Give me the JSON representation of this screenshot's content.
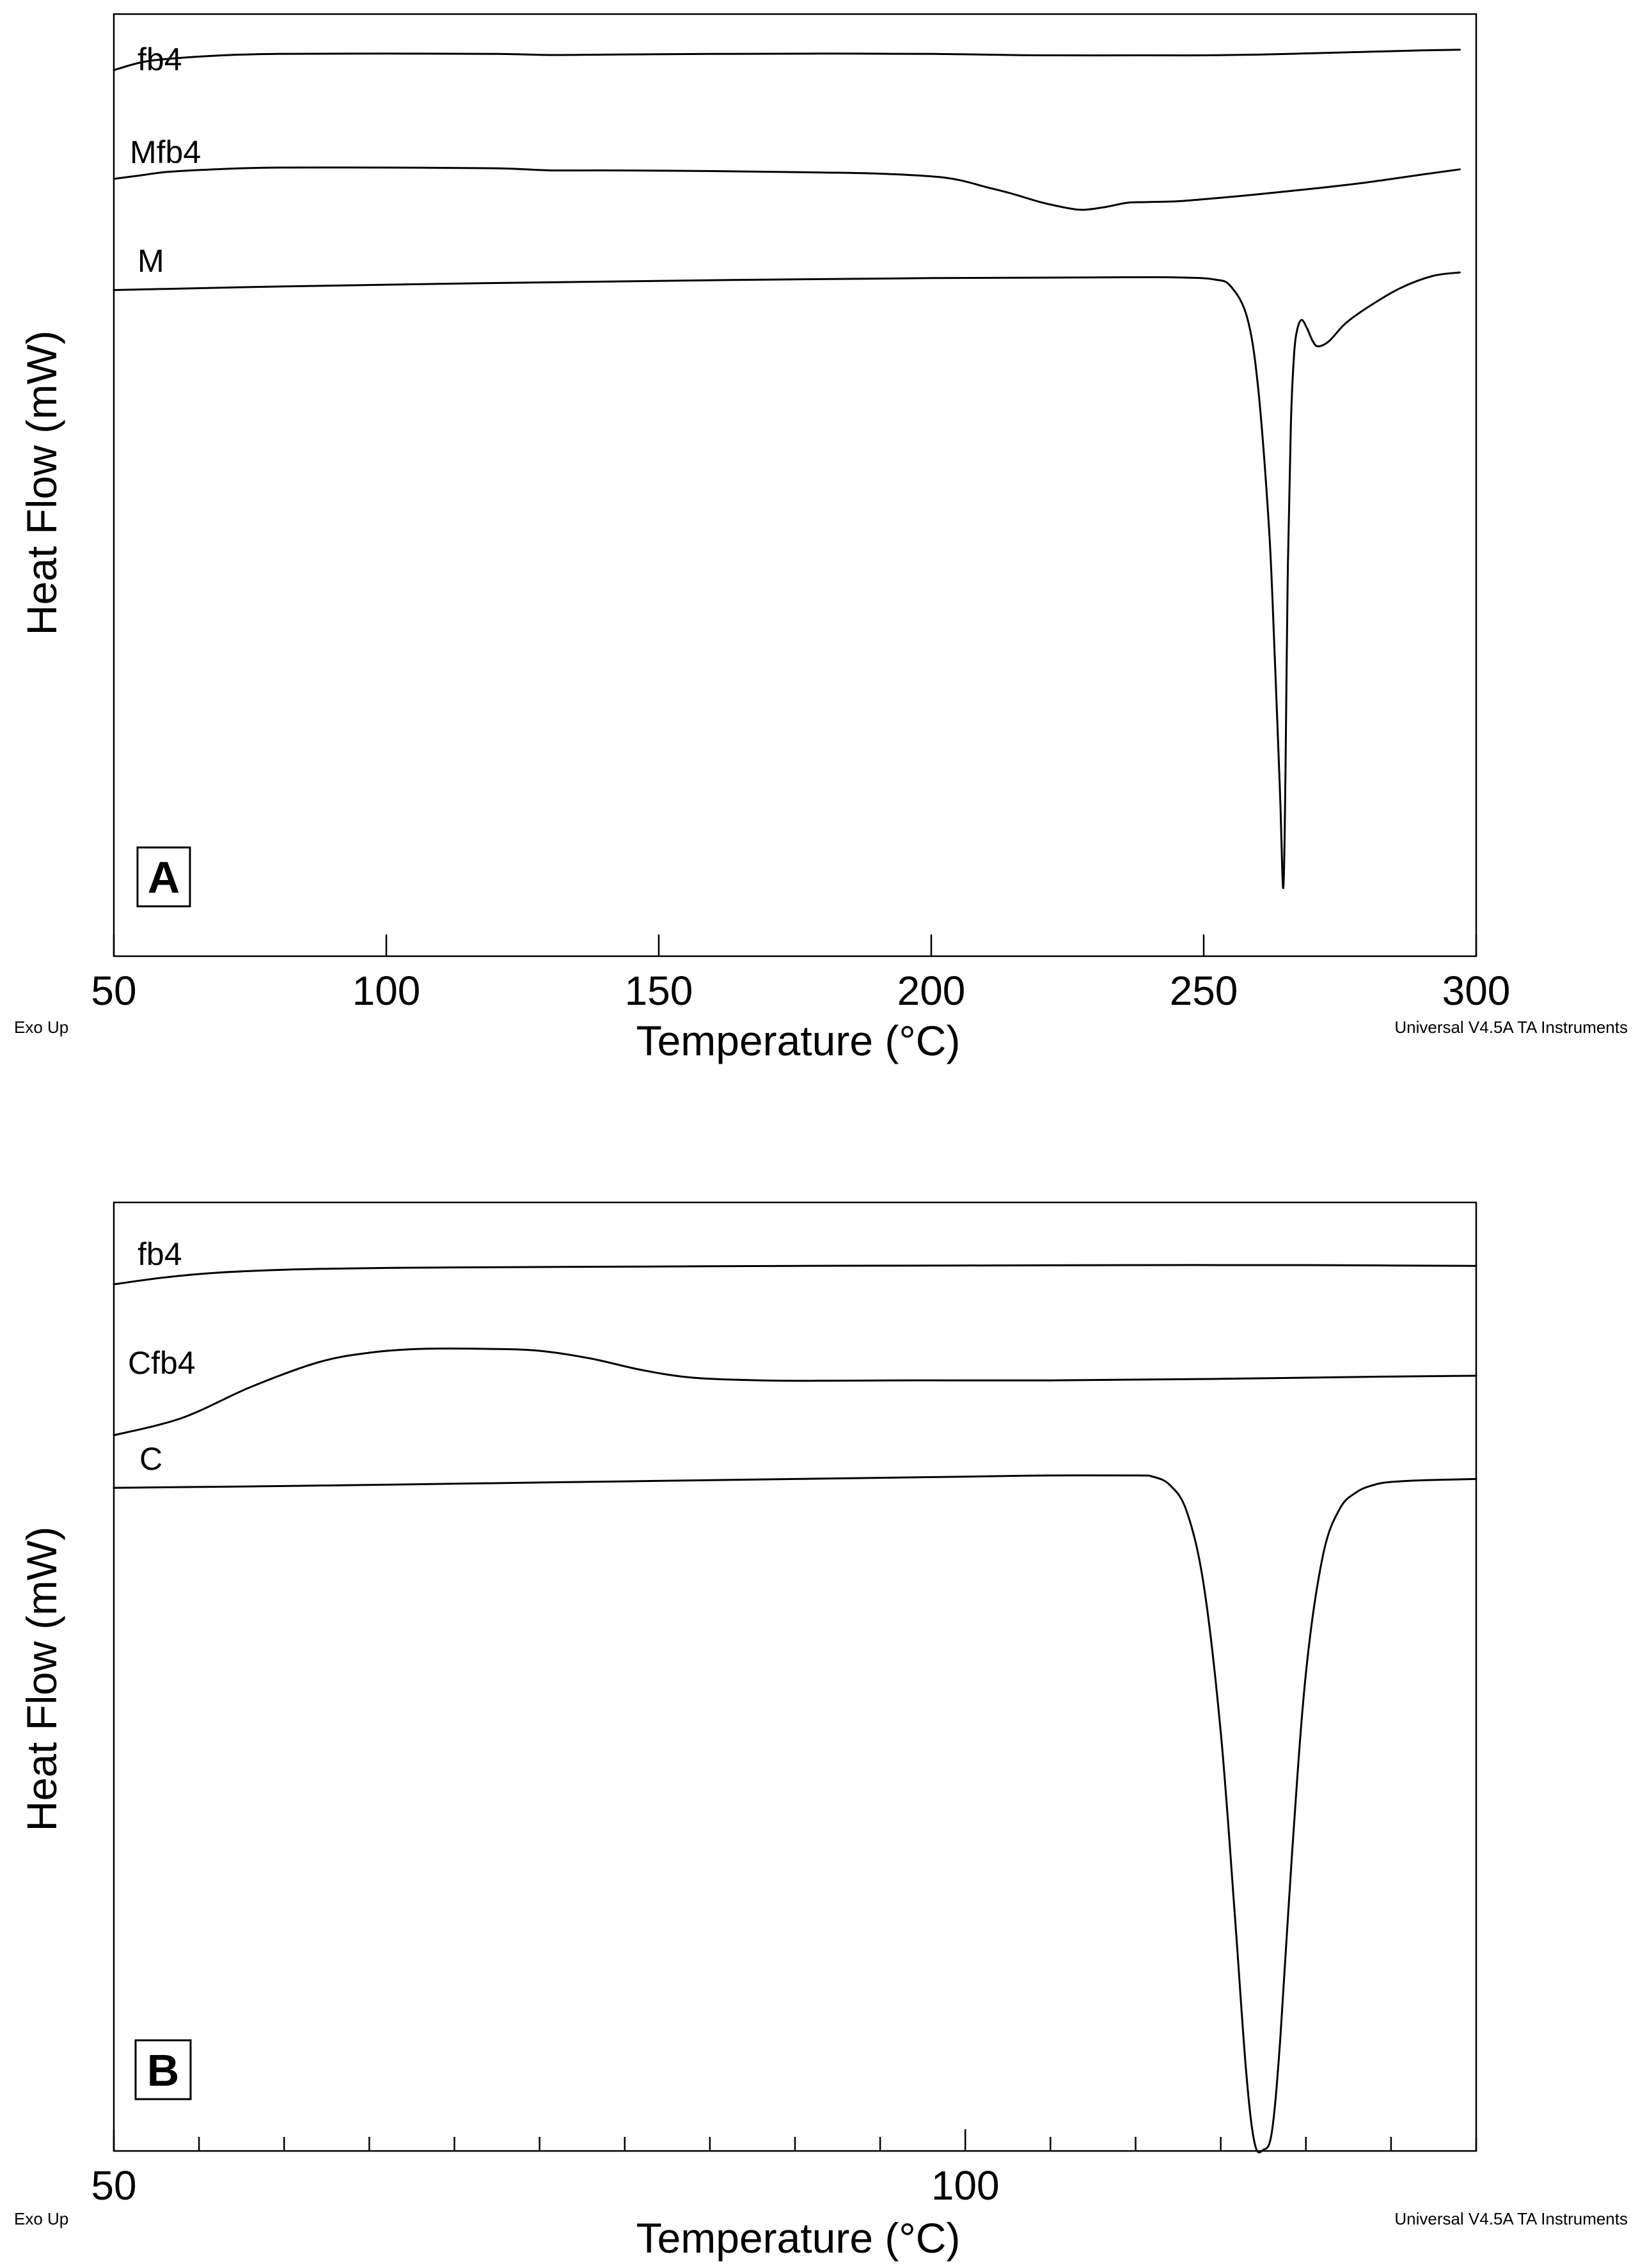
{
  "chart_data": [
    {
      "type": "line",
      "panel_label": "A",
      "xlabel": "Temperature (°C)",
      "ylabel": "Heat Flow (mW)",
      "xlim": [
        50,
        300
      ],
      "xticks": [
        50,
        100,
        150,
        200,
        250,
        300
      ],
      "footer_left": "Exo Up",
      "footer_right": "Universal V4.5A TA Instruments",
      "grid": false,
      "series": [
        {
          "name": "fb4",
          "x": [
            50,
            55,
            60,
            70,
            80,
            100,
            120,
            130,
            140,
            160,
            180,
            200,
            210,
            220,
            240,
            250,
            260,
            270,
            280,
            290,
            297
          ],
          "y": [
            0.28,
            0.5,
            0.6,
            0.7,
            0.74,
            0.75,
            0.74,
            0.71,
            0.72,
            0.74,
            0.75,
            0.74,
            0.72,
            0.7,
            0.7,
            0.7,
            0.72,
            0.76,
            0.8,
            0.84,
            0.86
          ]
        },
        {
          "name": "Mfb4",
          "x": [
            50,
            55,
            60,
            70,
            80,
            100,
            120,
            130,
            140,
            160,
            180,
            190,
            200,
            205,
            210,
            215,
            220,
            225,
            228,
            232,
            236,
            240,
            245,
            250,
            260,
            270,
            280,
            290,
            297
          ],
          "y": [
            0.28,
            0.38,
            0.48,
            0.56,
            0.6,
            0.6,
            0.58,
            0.52,
            0.52,
            0.5,
            0.46,
            0.43,
            0.35,
            0.25,
            0.05,
            -0.15,
            -0.38,
            -0.55,
            -0.6,
            -0.52,
            -0.4,
            -0.38,
            -0.36,
            -0.3,
            -0.16,
            0.0,
            0.18,
            0.4,
            0.55
          ]
        },
        {
          "name": "M",
          "x": [
            50,
            80,
            120,
            160,
            200,
            230,
            245,
            252,
            255,
            258,
            260,
            262,
            263,
            264,
            264.6,
            265,
            265.4,
            266,
            266.6,
            267.2,
            268,
            269,
            270,
            271,
            273,
            276,
            280,
            286,
            292,
            297
          ],
          "y": [
            0.3,
            0.4,
            0.5,
            0.58,
            0.64,
            0.66,
            0.66,
            0.6,
            0.4,
            -0.5,
            -2.5,
            -6.5,
            -10.0,
            -14.0,
            -16.7,
            -13.5,
            -8.0,
            -3.5,
            -1.5,
            -0.8,
            -0.55,
            -0.8,
            -1.15,
            -1.3,
            -1.15,
            -0.65,
            -0.2,
            0.35,
            0.7,
            0.8
          ]
        }
      ]
    },
    {
      "type": "line",
      "panel_label": "B",
      "xlabel": "Temperature (°C)",
      "ylabel": "Heat Flow (mW)",
      "xlim": [
        50,
        130
      ],
      "xticks": [
        50,
        100
      ],
      "minor_ticks": [
        50,
        55,
        60,
        65,
        70,
        75,
        80,
        85,
        90,
        95,
        100,
        105,
        110,
        115,
        120,
        125,
        130
      ],
      "footer_left": "Exo Up",
      "footer_right": "Universal V4.5A TA Instruments",
      "grid": false,
      "series": [
        {
          "name": "fb4",
          "x": [
            50,
            53,
            56,
            60,
            65,
            70,
            80,
            90,
            100,
            110,
            120,
            125,
            130
          ],
          "y": [
            0.2,
            0.38,
            0.5,
            0.58,
            0.62,
            0.64,
            0.66,
            0.68,
            0.69,
            0.7,
            0.7,
            0.69,
            0.68
          ]
        },
        {
          "name": "Cfb4",
          "x": [
            50,
            54,
            58,
            62,
            65,
            68,
            72,
            75,
            78,
            81,
            84,
            88,
            92,
            96,
            100,
            105,
            110,
            115,
            120,
            125,
            130
          ],
          "y": [
            -1.15,
            -0.7,
            0.1,
            0.75,
            1.0,
            1.1,
            1.1,
            1.05,
            0.85,
            0.55,
            0.35,
            0.28,
            0.27,
            0.28,
            0.28,
            0.28,
            0.3,
            0.32,
            0.35,
            0.38,
            0.4
          ]
        },
        {
          "name": "C",
          "x": [
            50,
            60,
            70,
            80,
            90,
            100,
            105,
            110,
            111,
            112,
            113,
            114,
            115,
            115.8,
            116.5,
            117,
            117.5,
            118,
            118.5,
            119.2,
            120,
            121,
            122,
            123,
            124,
            125,
            127,
            130
          ],
          "y": [
            0.15,
            0.18,
            0.22,
            0.26,
            0.3,
            0.34,
            0.36,
            0.36,
            0.34,
            0.2,
            -0.25,
            -1.5,
            -4.0,
            -7.0,
            -9.8,
            -11.0,
            -11.1,
            -10.8,
            -9.2,
            -6.0,
            -3.0,
            -1.0,
            -0.2,
            0.08,
            0.2,
            0.25,
            0.28,
            0.3
          ]
        }
      ]
    }
  ]
}
